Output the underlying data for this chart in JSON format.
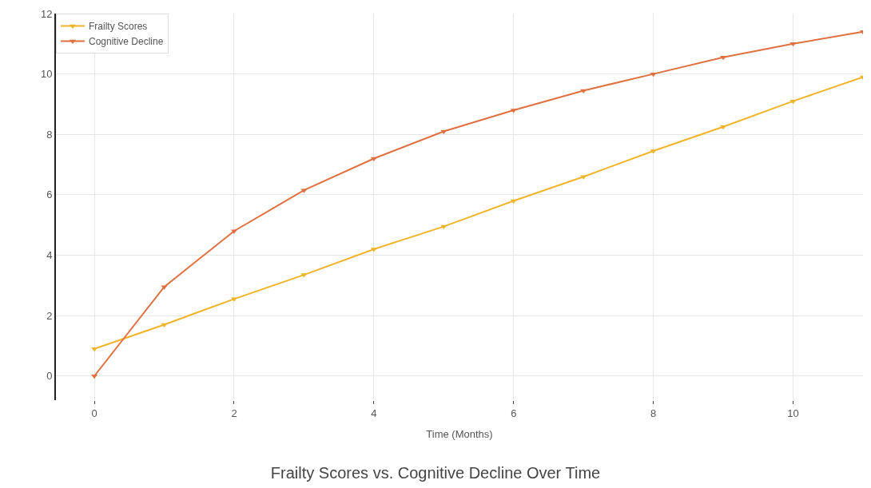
{
  "chart_data": {
    "type": "line",
    "title": "Frailty Scores vs. Cognitive Decline Over Time",
    "xlabel": "Time (Months)",
    "x": [
      0,
      1,
      2,
      3,
      4,
      5,
      6,
      7,
      8,
      9,
      10,
      11
    ],
    "series": [
      {
        "name": "Frailty Scores",
        "color": "#f0b429",
        "values": [
          0.9,
          1.7,
          2.55,
          3.35,
          4.2,
          4.95,
          5.8,
          6.6,
          7.45,
          8.25,
          9.1,
          9.9
        ]
      },
      {
        "name": "Cognitive Decline",
        "color": "#e07040",
        "values": [
          0,
          2.95,
          4.8,
          6.15,
          7.2,
          8.1,
          8.8,
          9.45,
          10.0,
          10.55,
          11.0,
          11.4
        ]
      }
    ],
    "xlim": [
      -0.55,
      11
    ],
    "ylim": [
      -0.8,
      12
    ],
    "xticks": [
      0,
      2,
      4,
      6,
      8,
      10
    ],
    "yticks": [
      0,
      2,
      4,
      6,
      8,
      10,
      12
    ],
    "grid": true,
    "legend": "top left",
    "marker": "triangle",
    "line_style": "solid"
  }
}
